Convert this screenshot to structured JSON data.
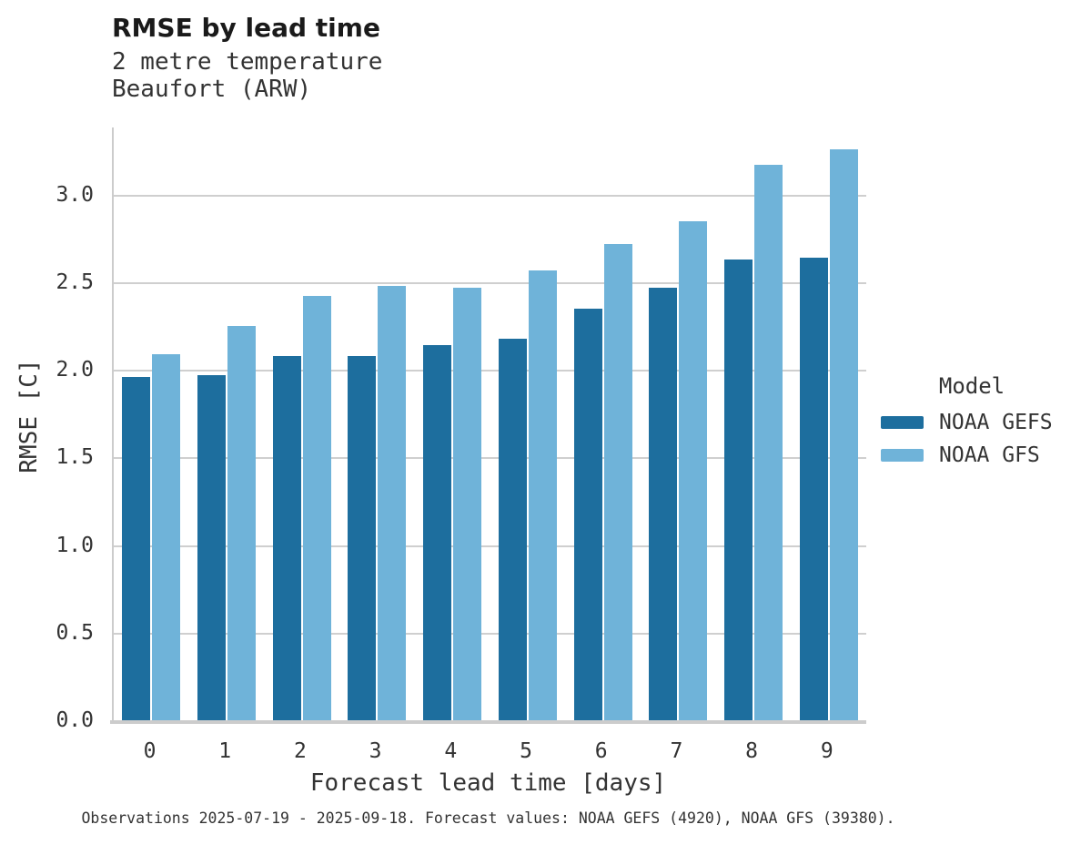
{
  "header": {
    "title": "RMSE by lead time",
    "subtitle_line1": "2 metre temperature",
    "subtitle_line2": "Beaufort (ARW)"
  },
  "chart_data": {
    "type": "bar",
    "title": "RMSE by lead time",
    "subtitle": [
      "2 metre temperature",
      "Beaufort (ARW)"
    ],
    "xlabel": "Forecast lead time [days]",
    "ylabel": "RMSE [C]",
    "categories": [
      "0",
      "1",
      "2",
      "3",
      "4",
      "5",
      "6",
      "7",
      "8",
      "9"
    ],
    "series": [
      {
        "name": "NOAA GEFS",
        "color": "#1d6e9e",
        "values": [
          1.97,
          1.98,
          2.09,
          2.09,
          2.15,
          2.19,
          2.36,
          2.48,
          2.64,
          2.65
        ]
      },
      {
        "name": "NOAA GFS",
        "color": "#6fb3d9",
        "values": [
          2.1,
          2.26,
          2.43,
          2.49,
          2.48,
          2.58,
          2.73,
          2.86,
          3.18,
          3.27
        ]
      }
    ],
    "ylim": [
      0,
      3.4
    ],
    "yticks": [
      0.0,
      0.5,
      1.0,
      1.5,
      2.0,
      2.5,
      3.0
    ],
    "grid": "horizontal",
    "legend_position": "right"
  },
  "legend": {
    "title": "Model",
    "items": [
      {
        "label": "NOAA GEFS",
        "color": "#1d6e9e"
      },
      {
        "label": "NOAA GFS",
        "color": "#6fb3d9"
      }
    ]
  },
  "footer": {
    "caption": "Observations 2025-07-19 - 2025-09-18. Forecast values: NOAA GEFS (4920), NOAA GFS (39380)."
  },
  "colors": {
    "gefs_dark_blue": "#1d6e9e",
    "gfs_light_blue": "#6fb3d9",
    "gridline_gray": "#cccccc",
    "text_dark": "#333333"
  }
}
